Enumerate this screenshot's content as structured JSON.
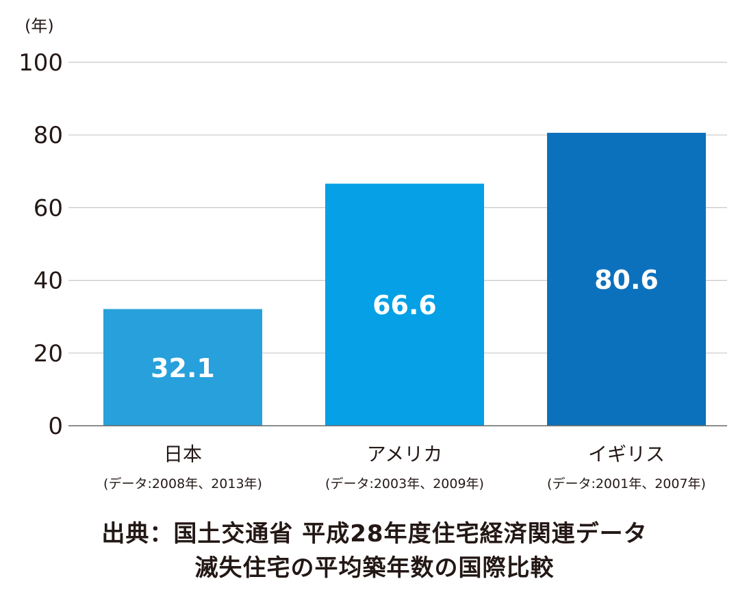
{
  "chart_data": {
    "type": "bar",
    "categories": [
      "日本",
      "アメリカ",
      "イギリス"
    ],
    "category_notes": [
      "(データ:2008年、2013年)",
      "(データ:2003年、2009年)",
      "(データ:2001年、2007年)"
    ],
    "values": [
      32.1,
      66.6,
      80.6
    ],
    "value_labels": [
      "32.1",
      "66.6",
      "80.6"
    ],
    "bar_colors": [
      "#27a0dc",
      "#05a0e6",
      "#0c71bc"
    ],
    "ylabel": "(年)",
    "ylim": [
      0,
      100
    ],
    "yticks": [
      0,
      20,
      40,
      60,
      80,
      100
    ],
    "grid": true,
    "gridline_color": "#c8c8c8"
  },
  "source": {
    "line1": "出典：国土交通省 平成28年度住宅経済関連データ",
    "line2": "滅失住宅の平均築年数の国際比較"
  }
}
